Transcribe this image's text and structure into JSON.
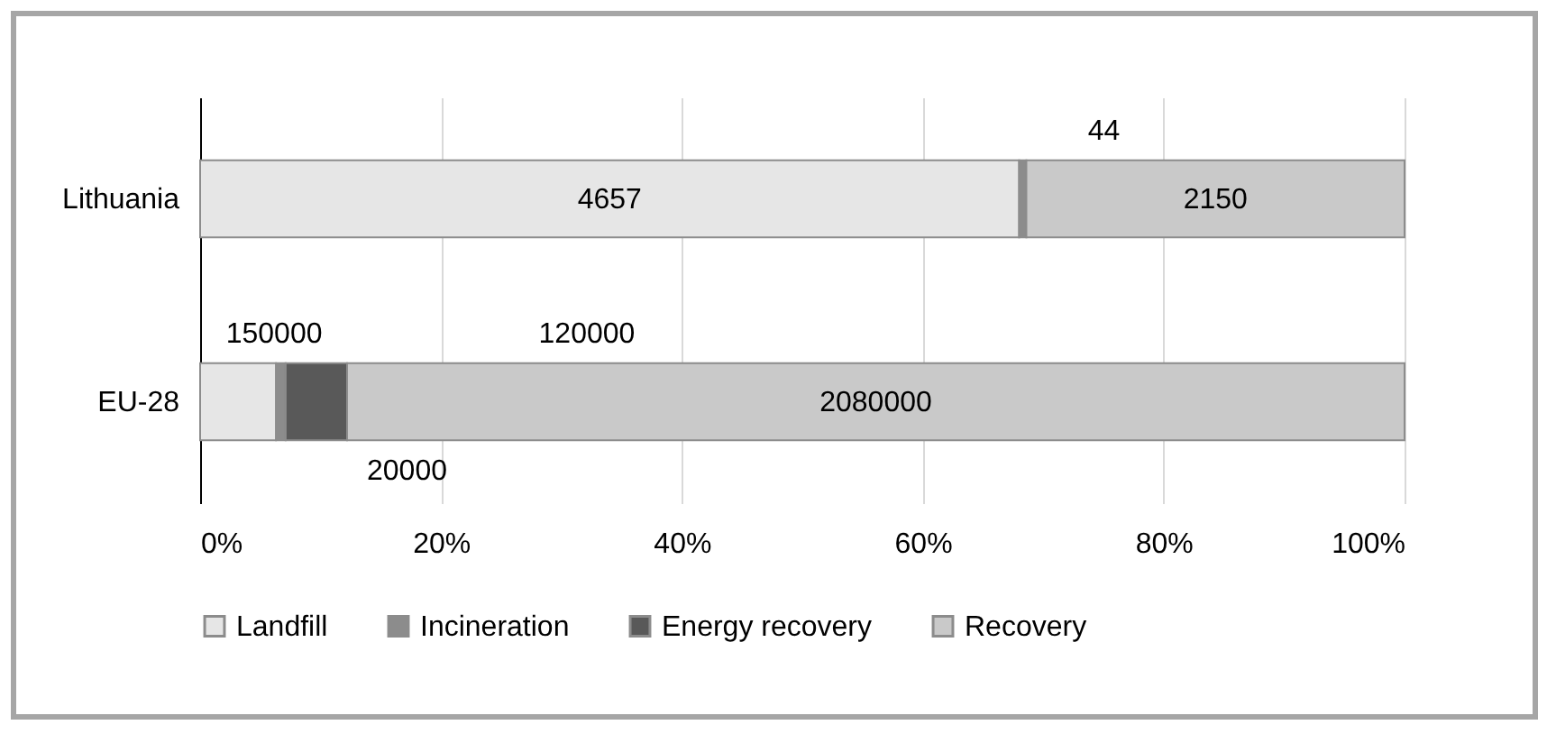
{
  "chart_data": {
    "type": "bar",
    "orientation": "horizontal",
    "stacked": true,
    "categories": [
      "Lithuania",
      "EU-28"
    ],
    "series": [
      {
        "name": "Landfill",
        "color": "#e6e6e6",
        "values": [
          68.0,
          6.3
        ]
      },
      {
        "name": "Incineration",
        "color": "#8c8c8c",
        "values": [
          0.6,
          0.8
        ]
      },
      {
        "name": "Energy recovery",
        "color": "#595959",
        "values": [
          null,
          5.1
        ]
      },
      {
        "name": "Recovery",
        "color": "#c9c9c9",
        "values": [
          31.4,
          87.8
        ]
      }
    ],
    "annotations": [
      "4657",
      "150000",
      "44",
      "20000",
      "120000",
      "2150",
      "2080000"
    ],
    "xlim": [
      0,
      100
    ],
    "xticks": [
      {
        "value": 0,
        "label": "0%"
      },
      {
        "value": 20,
        "label": "20%"
      },
      {
        "value": 40,
        "label": "40%"
      },
      {
        "value": 60,
        "label": "60%"
      },
      {
        "value": 80,
        "label": "80%"
      },
      {
        "value": 100,
        "label": "100%"
      }
    ],
    "grid": "x",
    "legend": "bottom"
  }
}
